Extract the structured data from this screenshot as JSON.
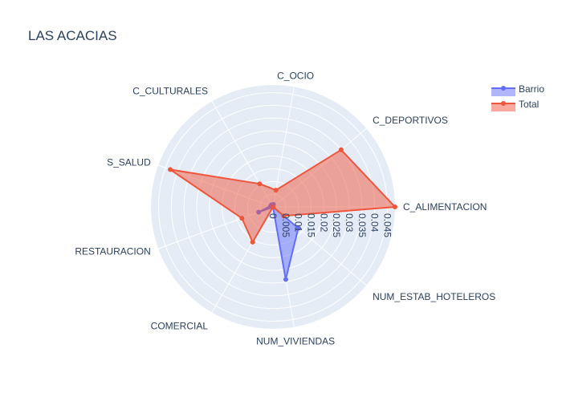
{
  "chart_data": {
    "type": "radar",
    "title": "LAS ACACIAS",
    "categories": [
      "C_ALIMENTACION",
      "C_DEPORTIVOS",
      "C_OCIO",
      "C_CULTURALES",
      "S_SALUD",
      "RESTAURACION",
      "COMERCIAL",
      "NUM_VIVIENDAS",
      "NUM_ESTAB_HOTELEROS"
    ],
    "radial_range": [
      0,
      0.048
    ],
    "radial_ticks": [
      "0",
      "0.005",
      "0.01",
      "0.015",
      "0.02",
      "0.025",
      "0.03",
      "0.035",
      "0.04",
      "0.045"
    ],
    "radial_tick_values": [
      0,
      0.005,
      0.01,
      0.015,
      0.02,
      0.025,
      0.03,
      0.035,
      0.04,
      0.045
    ],
    "grid": true,
    "legend_position": "top-right",
    "series": [
      {
        "name": "Barrio",
        "color": "#636efa",
        "values": [
          0,
          0,
          0.001,
          0.001,
          0.001,
          0.006,
          0.0,
          0.029,
          0.013
        ]
      },
      {
        "name": "Total",
        "color": "#ef553b",
        "values": [
          0.048,
          0.035,
          0.0067,
          0.0105,
          0.043,
          0.013,
          0.016,
          0.0,
          0.0055
        ]
      }
    ]
  }
}
